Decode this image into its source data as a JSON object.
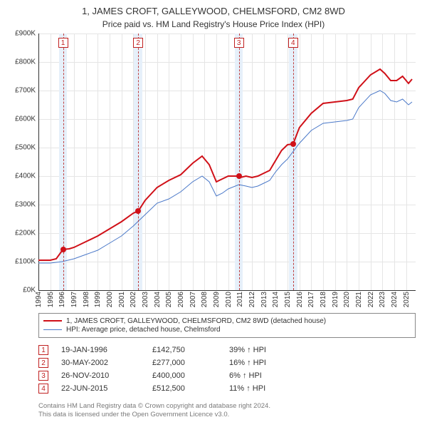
{
  "title": "1, JAMES CROFT, GALLEYWOOD, CHELMSFORD, CM2 8WD",
  "subtitle": "Price paid vs. HM Land Registry's House Price Index (HPI)",
  "chart": {
    "type": "line",
    "x_years": [
      1994,
      1995,
      1996,
      1997,
      1998,
      1999,
      2000,
      2001,
      2002,
      2003,
      2004,
      2005,
      2006,
      2007,
      2008,
      2009,
      2010,
      2011,
      2012,
      2013,
      2014,
      2015,
      2016,
      2017,
      2018,
      2019,
      2020,
      2021,
      2022,
      2023,
      2024,
      2025
    ],
    "xlim": [
      1994,
      2025.8
    ],
    "ylim": [
      0,
      900
    ],
    "ytick_step": 100,
    "ytick_prefix": "£",
    "ytick_suffix": "K",
    "background_color": "#ffffff",
    "grid_color": "#e5e5e5",
    "axis_color": "#333333",
    "event_band_color": "#e6f0fa",
    "event_band_halfwidth_years": 0.35,
    "event_line_color": "#c04040",
    "event_badge_border": "#c02020",
    "event_badge_text": "#c02020",
    "marker_color": "#d01018",
    "series": [
      {
        "id": "subject",
        "color": "#d01018",
        "width": 2,
        "points": [
          [
            1994.0,
            105
          ],
          [
            1995.0,
            105
          ],
          [
            1995.5,
            110
          ],
          [
            1996.07,
            142.75
          ],
          [
            1996.6,
            145
          ],
          [
            1997.0,
            150
          ],
          [
            1998.0,
            170
          ],
          [
            1999.0,
            190
          ],
          [
            2000.0,
            215
          ],
          [
            2001.0,
            240
          ],
          [
            2002.0,
            270
          ],
          [
            2002.41,
            277
          ],
          [
            2003.0,
            315
          ],
          [
            2004.0,
            360
          ],
          [
            2005.0,
            385
          ],
          [
            2006.0,
            405
          ],
          [
            2007.0,
            445
          ],
          [
            2007.8,
            470
          ],
          [
            2008.4,
            440
          ],
          [
            2009.0,
            380
          ],
          [
            2009.5,
            390
          ],
          [
            2010.0,
            400
          ],
          [
            2010.9,
            400
          ],
          [
            2011.0,
            395
          ],
          [
            2011.5,
            400
          ],
          [
            2012.0,
            395
          ],
          [
            2012.5,
            400
          ],
          [
            2013.0,
            410
          ],
          [
            2013.5,
            420
          ],
          [
            2014.0,
            455
          ],
          [
            2014.5,
            490
          ],
          [
            2015.0,
            510
          ],
          [
            2015.47,
            512.5
          ],
          [
            2016.0,
            570
          ],
          [
            2017.0,
            620
          ],
          [
            2018.0,
            655
          ],
          [
            2019.0,
            660
          ],
          [
            2020.0,
            665
          ],
          [
            2020.5,
            670
          ],
          [
            2021.0,
            710
          ],
          [
            2022.0,
            755
          ],
          [
            2022.8,
            775
          ],
          [
            2023.2,
            760
          ],
          [
            2023.7,
            735
          ],
          [
            2024.2,
            735
          ],
          [
            2024.7,
            750
          ],
          [
            2025.2,
            725
          ],
          [
            2025.5,
            740
          ]
        ]
      },
      {
        "id": "hpi",
        "color": "#4a78c8",
        "width": 1,
        "points": [
          [
            1994.0,
            95
          ],
          [
            1995.0,
            95
          ],
          [
            1996.0,
            100
          ],
          [
            1997.0,
            110
          ],
          [
            1998.0,
            125
          ],
          [
            1999.0,
            140
          ],
          [
            2000.0,
            165
          ],
          [
            2001.0,
            190
          ],
          [
            2002.0,
            225
          ],
          [
            2003.0,
            265
          ],
          [
            2004.0,
            305
          ],
          [
            2005.0,
            320
          ],
          [
            2006.0,
            345
          ],
          [
            2007.0,
            380
          ],
          [
            2007.8,
            400
          ],
          [
            2008.4,
            380
          ],
          [
            2009.0,
            330
          ],
          [
            2009.5,
            340
          ],
          [
            2010.0,
            355
          ],
          [
            2010.9,
            370
          ],
          [
            2011.5,
            365
          ],
          [
            2012.0,
            360
          ],
          [
            2012.5,
            365
          ],
          [
            2013.0,
            375
          ],
          [
            2013.5,
            385
          ],
          [
            2014.0,
            415
          ],
          [
            2014.5,
            440
          ],
          [
            2015.0,
            460
          ],
          [
            2016.0,
            515
          ],
          [
            2017.0,
            560
          ],
          [
            2018.0,
            585
          ],
          [
            2019.0,
            590
          ],
          [
            2020.0,
            595
          ],
          [
            2020.5,
            600
          ],
          [
            2021.0,
            640
          ],
          [
            2022.0,
            685
          ],
          [
            2022.8,
            700
          ],
          [
            2023.2,
            690
          ],
          [
            2023.7,
            665
          ],
          [
            2024.2,
            660
          ],
          [
            2024.7,
            670
          ],
          [
            2025.2,
            650
          ],
          [
            2025.5,
            660
          ]
        ]
      }
    ],
    "events": [
      {
        "n": "1",
        "year": 1996.07,
        "price_k": 142.75
      },
      {
        "n": "2",
        "year": 2002.41,
        "price_k": 277
      },
      {
        "n": "3",
        "year": 2010.9,
        "price_k": 400
      },
      {
        "n": "4",
        "year": 2015.47,
        "price_k": 512.5
      }
    ]
  },
  "legend": {
    "rows": [
      {
        "color": "#d01018",
        "width": 2,
        "label": "1, JAMES CROFT, GALLEYWOOD, CHELMSFORD, CM2 8WD (detached house)"
      },
      {
        "color": "#4a78c8",
        "width": 1,
        "label": "HPI: Average price, detached house, Chelmsford"
      }
    ]
  },
  "events_table": [
    {
      "n": "1",
      "date": "19-JAN-1996",
      "price": "£142,750",
      "delta": "39% ↑ HPI"
    },
    {
      "n": "2",
      "date": "30-MAY-2002",
      "price": "£277,000",
      "delta": "16% ↑ HPI"
    },
    {
      "n": "3",
      "date": "26-NOV-2010",
      "price": "£400,000",
      "delta": "6% ↑ HPI"
    },
    {
      "n": "4",
      "date": "22-JUN-2015",
      "price": "£512,500",
      "delta": "11% ↑ HPI"
    }
  ],
  "footer": {
    "line1": "Contains HM Land Registry data © Crown copyright and database right 2024.",
    "line2": "This data is licensed under the Open Government Licence v3.0.",
    "color": "#7a7a7a"
  }
}
